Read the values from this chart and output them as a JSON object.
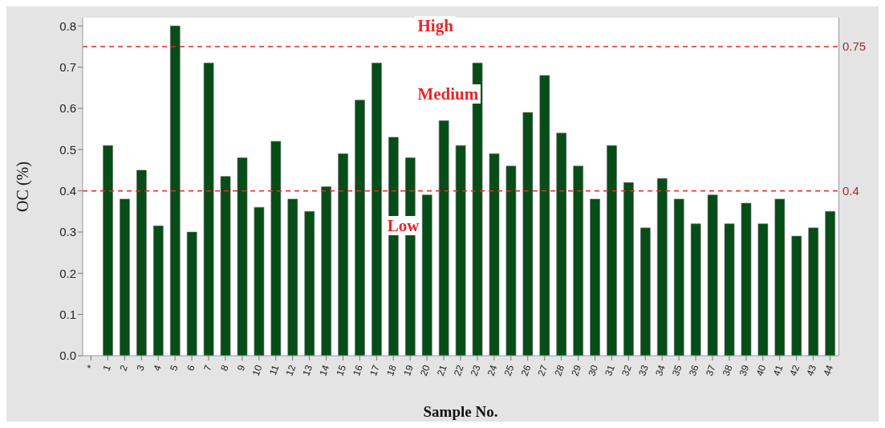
{
  "chart_data": {
    "type": "bar",
    "xlabel": "Sample No.",
    "ylabel": "OC (%)",
    "categories": [
      "*",
      "1",
      "2",
      "3",
      "4",
      "5",
      "6",
      "7",
      "8",
      "9",
      "10",
      "11",
      "12",
      "13",
      "14",
      "15",
      "16",
      "17",
      "18",
      "19",
      "20",
      "21",
      "22",
      "23",
      "24",
      "25",
      "26",
      "27",
      "28",
      "29",
      "30",
      "31",
      "32",
      "33",
      "34",
      "35",
      "36",
      "37",
      "38",
      "39",
      "40",
      "41",
      "42",
      "43",
      "44"
    ],
    "values": [
      null,
      0.51,
      0.38,
      0.45,
      0.315,
      0.8,
      0.3,
      0.71,
      0.435,
      0.48,
      0.36,
      0.52,
      0.38,
      0.35,
      0.41,
      0.49,
      0.62,
      0.71,
      0.53,
      0.48,
      0.39,
      0.57,
      0.51,
      0.71,
      0.49,
      0.46,
      0.59,
      0.68,
      0.54,
      0.46,
      0.38,
      0.51,
      0.42,
      0.31,
      0.43,
      0.38,
      0.32,
      0.39,
      0.32,
      0.37,
      0.32,
      0.38,
      0.29,
      0.31,
      0.35
    ],
    "color": "#064d18",
    "ylim": [
      0,
      0.82
    ],
    "yticks": [
      {
        "value": 0,
        "label": "0.0"
      },
      0.1,
      0.2,
      0.3,
      0.4,
      0.5,
      0.6,
      0.7,
      0.8
    ],
    "ref_lines": [
      {
        "axis": "y",
        "value": 0.75,
        "label": "0.75",
        "color": "#e8262a",
        "line_style": "dashed"
      },
      {
        "axis": "y",
        "value": 0.4,
        "label": "0.4",
        "color": "#e8262a",
        "line_style": "dashed"
      }
    ],
    "annotations": [
      "High",
      "Medium",
      "Low"
    ]
  }
}
